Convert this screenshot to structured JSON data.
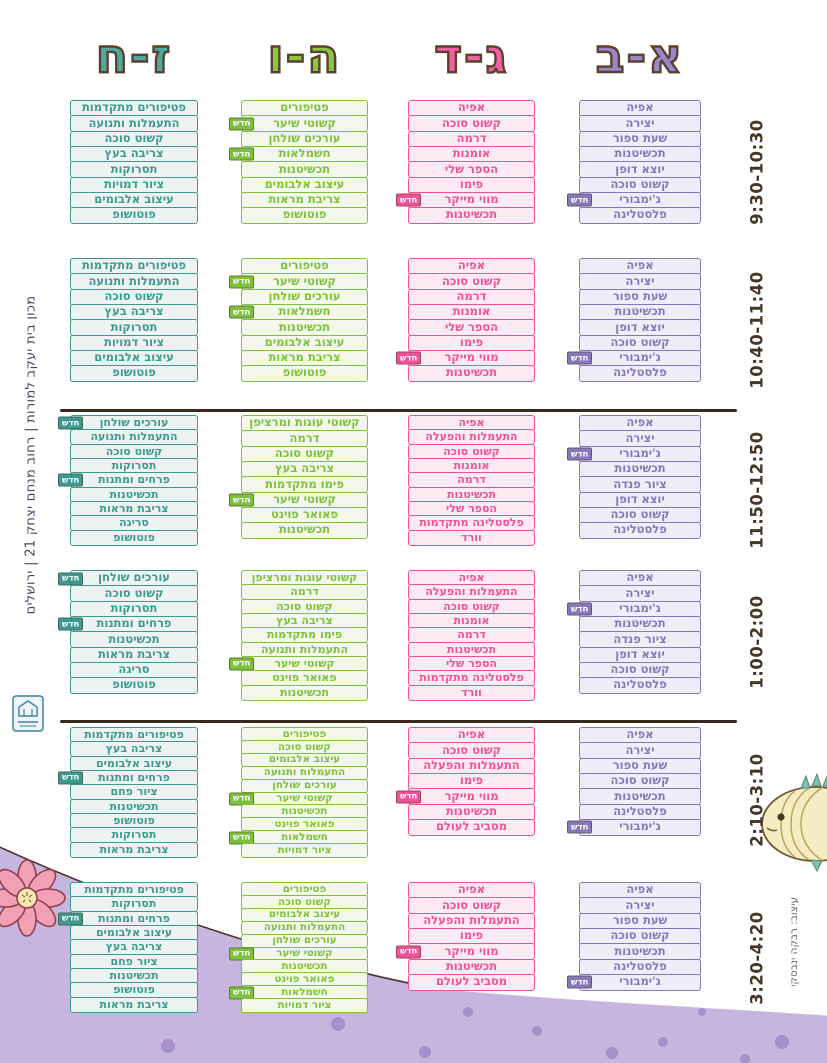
{
  "badge_label": "חדש",
  "institute_line": "מכון בית יעקב למורות | רחוב מנחם יצחק 21 | ירושלים",
  "credit": "עיצוב: רבקה ינבסקי",
  "times": [
    "9:30-10:30",
    "10:40-11:40",
    "11:50-12:50",
    "1:00-2:00",
    "2:10-3:10",
    "3:20-4:20"
  ],
  "colors": {
    "divider": "#3a2a1c",
    "time_text": "#463626",
    "hill": "#c6b6df",
    "dots": "#a78fc9",
    "header_outline": "#59422e"
  },
  "columns": [
    {
      "key": "alef-bet",
      "title": "א-ב",
      "color": "#8678bb",
      "bg": "#efedf7",
      "header_color": "#9b86cc",
      "rows": [
        [
          "אפיה",
          "יצירה",
          "שעת ספור",
          "תכשיטנות",
          "יוצא דופן",
          "קשוט סוכה",
          {
            "label": "ג'ימבורי",
            "new": true
          },
          "פלסטלינה"
        ],
        [
          "אפיה",
          "יצירה",
          "שעת ספור",
          "תכשיטנות",
          "יוצא דופן",
          "קשוט סוכה",
          {
            "label": "ג'ימבורי",
            "new": true
          },
          "פלסטלינה"
        ],
        [
          "אפיה",
          "יצירה",
          {
            "label": "ג'ימבורי",
            "new": true
          },
          "תכשיטנות",
          "ציור פנדה",
          "יוצא דופן",
          "קשוט סוכה",
          "פלסטלינה"
        ],
        [
          "אפיה",
          "יצירה",
          {
            "label": "ג'ימבורי",
            "new": true
          },
          "תכשיטנות",
          "ציור פנדה",
          "יוצא דופן",
          "קשוט סוכה",
          "פלסטלינה"
        ],
        [
          "אפיה",
          "יצירה",
          "שעת ספור",
          "קשוט סוכה",
          "תכשיטנות",
          "פלסטלינה",
          {
            "label": "ג'ימבורי",
            "new": true
          }
        ],
        [
          "אפיה",
          "יצירה",
          "שעת ספור",
          "קשוט סוכה",
          "תכשיטנות",
          "פלסטלינה",
          {
            "label": "ג'ימבורי",
            "new": true
          }
        ]
      ]
    },
    {
      "key": "gimel-dalet",
      "title": "ג-ד",
      "color": "#ef529a",
      "bg": "#fcebf3",
      "header_color": "#f2609f",
      "rows": [
        [
          "אפיה",
          "קשוט סוכה",
          "דרמה",
          "אומנות",
          "הספר שלי",
          "פימו",
          {
            "label": "מווי מייקר",
            "new": true
          },
          "תכשיטנות"
        ],
        [
          "אפיה",
          "קשוט סוכה",
          "דרמה",
          "אומנות",
          "הספר שלי",
          "פימו",
          {
            "label": "מווי מייקר",
            "new": true
          },
          "תכשיטנות"
        ],
        [
          "אפיה",
          "התעמלות והפעלה",
          "קשוט סוכה",
          "אומנות",
          "דרמה",
          "תכשיטנות",
          "הספר שלי",
          "פלסטלינה מתקדמות",
          "וורד"
        ],
        [
          "אפיה",
          "התעמלות והפעלה",
          "קשוט סוכה",
          "אומנות",
          "דרמה",
          "תכשיטנות",
          "הספר שלי",
          "פלסטלינה מתקדמות",
          "וורד"
        ],
        [
          "אפיה",
          "קשוט סוכה",
          "התעמלות והפעלה",
          "פימו",
          {
            "label": "מווי מייקר",
            "new": true
          },
          "תכשיטנות",
          "מסביב לעולם"
        ],
        [
          "אפיה",
          "קשוט סוכה",
          "התעמלות והפעלה",
          "פימו",
          {
            "label": "מווי מייקר",
            "new": true
          },
          "תכשיטנות",
          "מסביב לעולם"
        ]
      ]
    },
    {
      "key": "hey-vav",
      "title": "ה-ו",
      "color": "#7dc13d",
      "bg": "#f3f8ea",
      "header_color": "#8cc63f",
      "rows": [
        [
          "פטיפורים",
          {
            "label": "קשוטי שיער",
            "new": true
          },
          "עורכים שולחן",
          {
            "label": "חשמלאות",
            "new": true
          },
          "תכשיטנות",
          "עיצוב אלבומים",
          "צריבת מראות",
          "פוטושופ"
        ],
        [
          "פטיפורים",
          {
            "label": "קשוטי שיער",
            "new": true
          },
          "עורכים שולחן",
          {
            "label": "חשמלאות",
            "new": true
          },
          "תכשיטנות",
          "עיצוב אלבומים",
          "צריבת מראות",
          "פוטושופ"
        ],
        [
          "קשוטי עוגות ומרציפן",
          "דרמה",
          "קשוט סוכה",
          "צריבה בעץ",
          "פימו מתקדמות",
          {
            "label": "קשוטי שיער",
            "new": true
          },
          "פאואר פוינט",
          "תכשיטנות"
        ],
        [
          "קשוטי עוגות ומרציפן",
          "דרמה",
          "קשוט סוכה",
          "צריבה בעץ",
          "פימו מתקדמות",
          "התעמלות ותנועה",
          {
            "label": "קשוטי שיער",
            "new": true
          },
          "פאואר פוינט",
          "תכשיטנות"
        ],
        [
          "פטיפורים",
          "קשוט סוכה",
          "עיצוב אלבומים",
          "התעמלות ותנועה",
          "עורכים שולחן",
          {
            "label": "קשוטי שיער",
            "new": true
          },
          "תכשיטנות",
          "פאואר פוינט",
          {
            "label": "חשמלאות",
            "new": true
          },
          "ציור דמויות"
        ],
        [
          "פטיפורים",
          "קשוט סוכה",
          "עיצוב אלבומים",
          "התעמלות ותנועה",
          "עורכים שולחן",
          {
            "label": "קשוטי שיער",
            "new": true
          },
          "תכשיטנות",
          "פאואר פוינט",
          {
            "label": "חשמלאות",
            "new": true
          },
          "ציור דמויות"
        ]
      ]
    },
    {
      "key": "zayin-chet",
      "title": "ז-ח",
      "color": "#3d9a90",
      "bg": "#edf3f0",
      "header_color": "#4fa9a0",
      "rows": [
        [
          "פטיפורים מתקדמות",
          "התעמלות ותנועה",
          "קשוט סוכה",
          "צריבה בעץ",
          "תסרוקות",
          "ציור דמויות",
          "עיצוב אלבומים",
          "פוטושופ"
        ],
        [
          "פטיפורים מתקדמות",
          "התעמלות ותנועה",
          "קשוט סוכה",
          "צריבה בעץ",
          "תסרוקות",
          "ציור דמויות",
          "עיצוב אלבומים",
          "פוטושופ"
        ],
        [
          {
            "label": "עורכים שולחן",
            "new": true
          },
          "התעמלות ותנועה",
          "קשוט סוכה",
          "תסרוקות",
          {
            "label": "פרחים ומתנות",
            "new": true
          },
          "תכשיטנות",
          "צריבת מראות",
          "סריגה",
          "פוטושופ"
        ],
        [
          {
            "label": "עורכים שולחן",
            "new": true
          },
          "קשוט סוכה",
          "תסרוקות",
          {
            "label": "פרחים ומתנות",
            "new": true
          },
          "תכשיטנות",
          "צריבת מראות",
          "סריגה",
          "פוטושופ"
        ],
        [
          "פטיפורים מתקדמות",
          "צריבה בעץ",
          "עיצוב אלבומים",
          {
            "label": "פרחים ומתנות",
            "new": true
          },
          "ציור פחם",
          "תכשיטנות",
          "פוטושופ",
          "תסרוקות",
          "צריבת מראות"
        ],
        [
          "פטיפורים מתקדמות",
          "תסרוקות",
          {
            "label": "פרחים ומתנות",
            "new": true
          },
          "עיצוב אלבומים",
          "צריבה בעץ",
          "ציור פחם",
          "תכשיטנות",
          "פוטושופ",
          "צריבת מראות"
        ]
      ]
    }
  ]
}
